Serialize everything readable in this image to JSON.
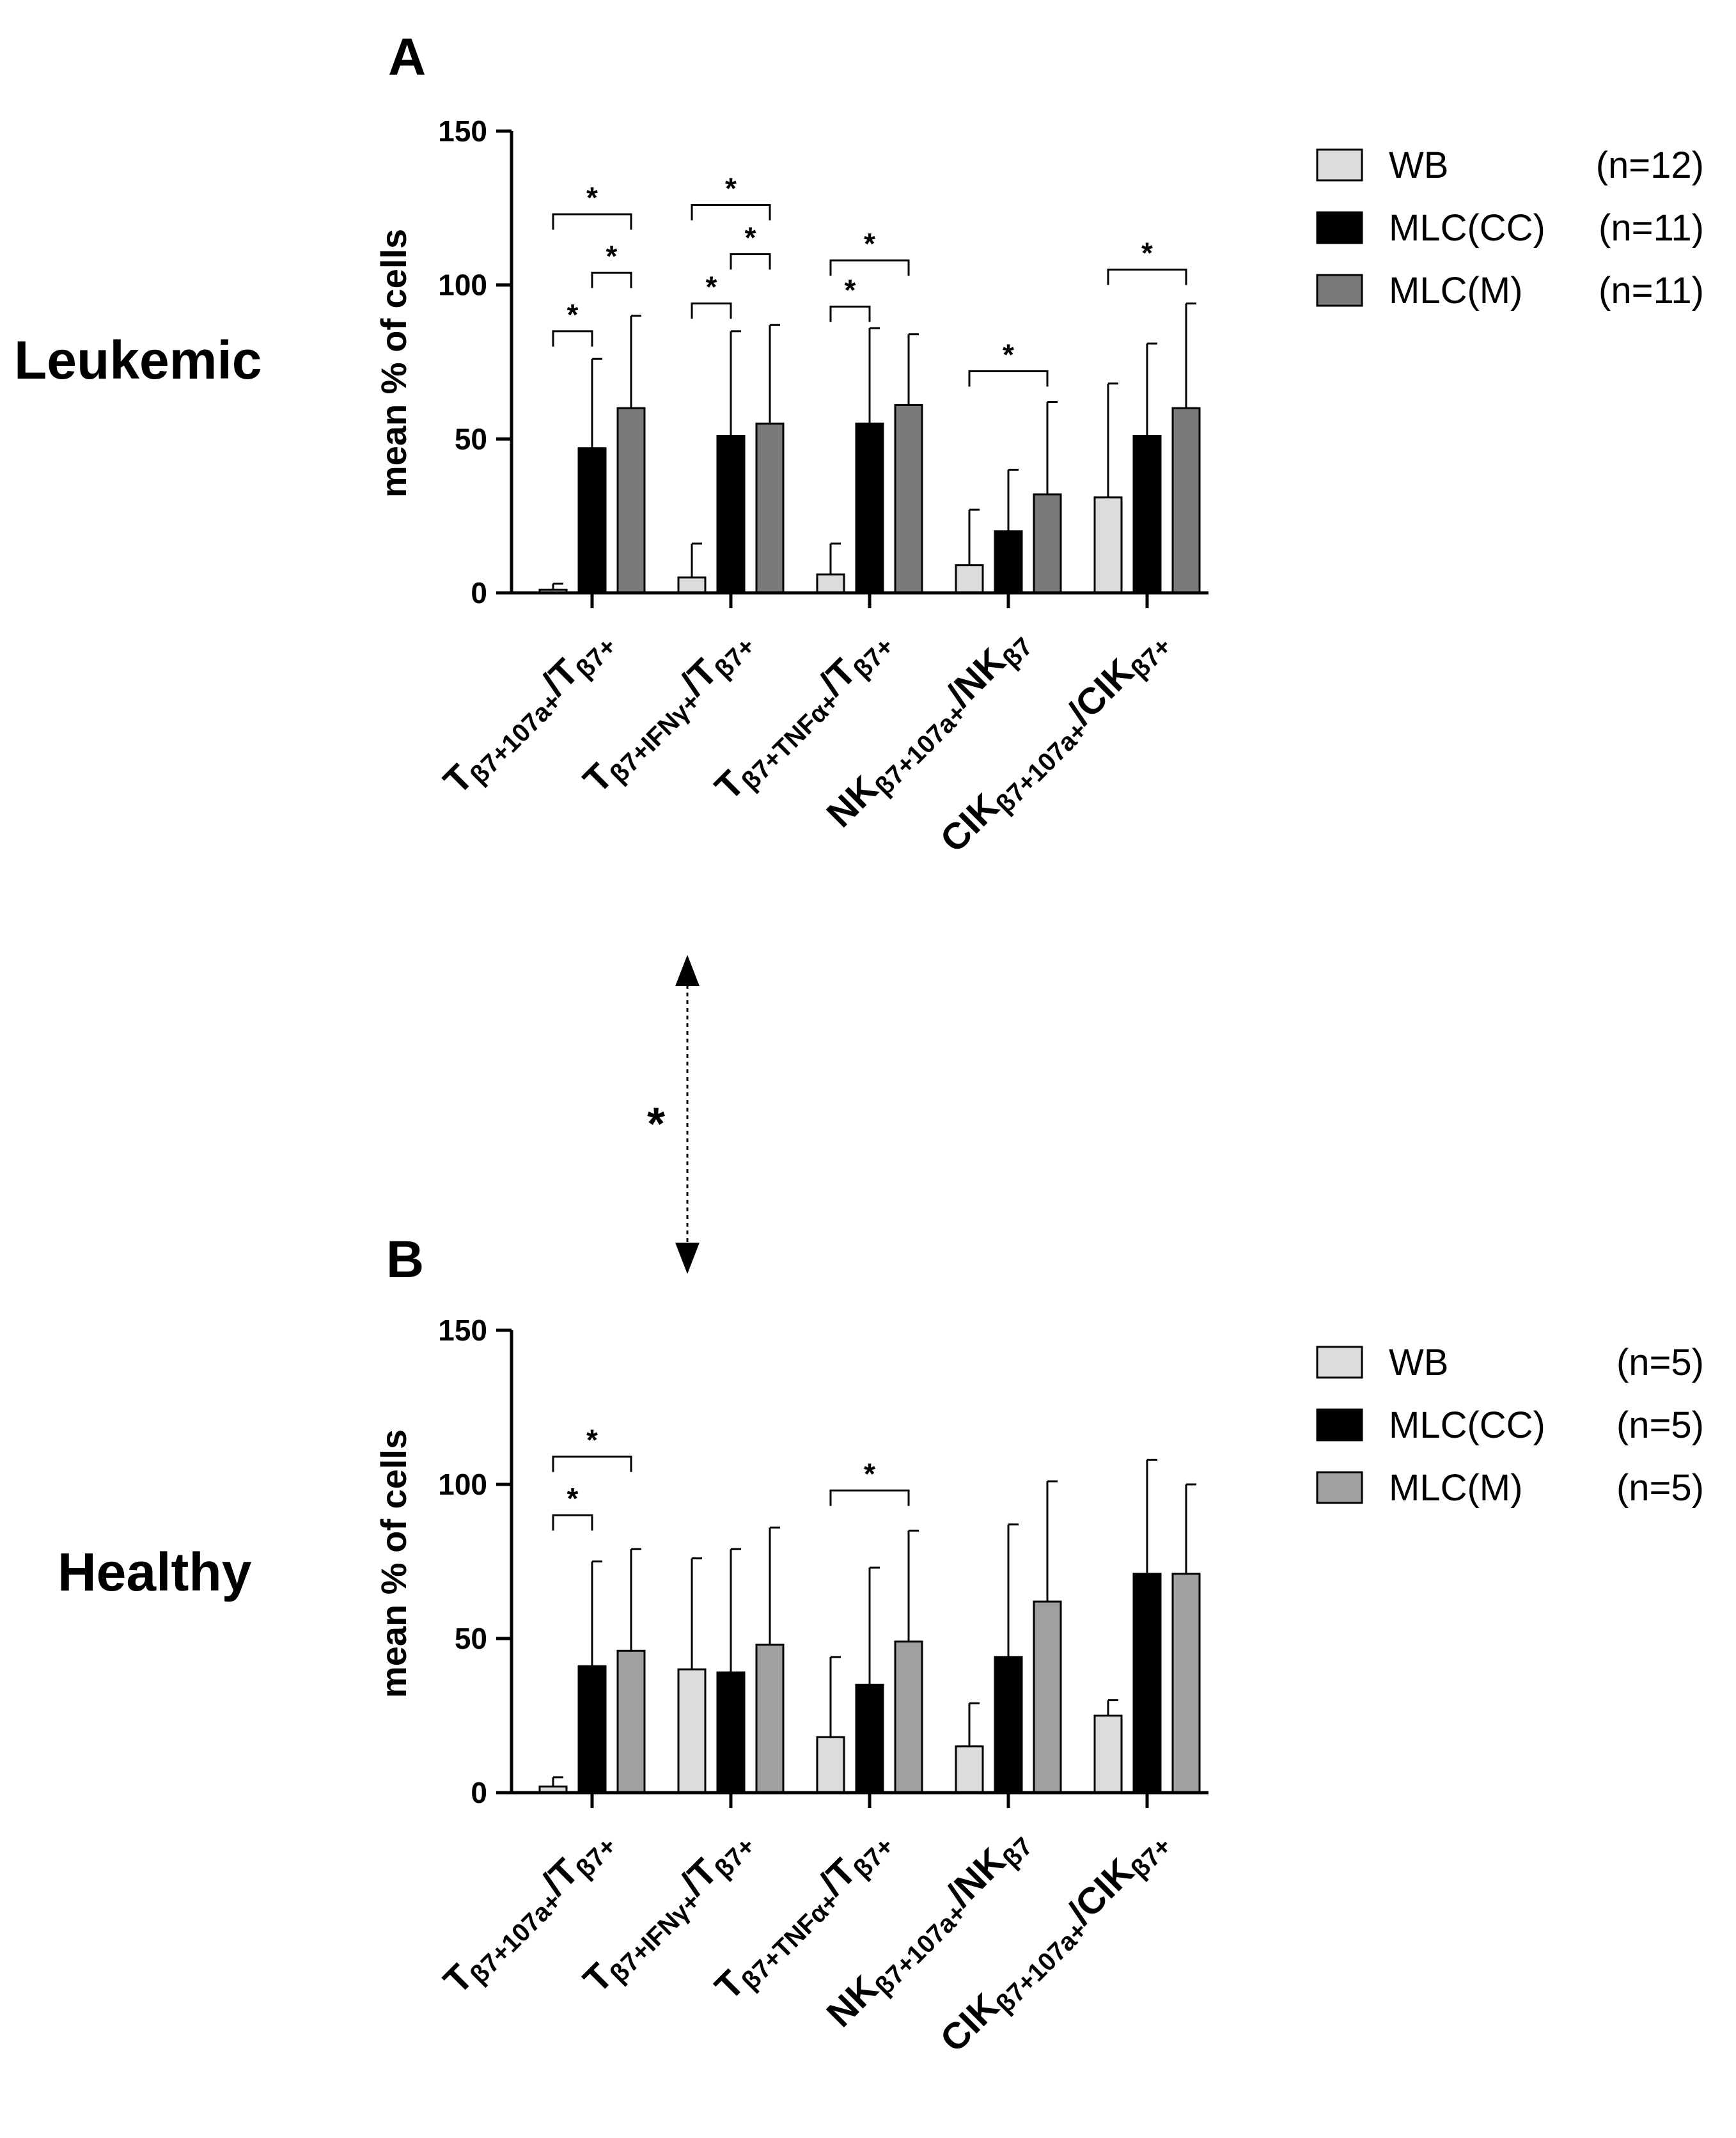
{
  "figure": {
    "middle_arrow_star": "*",
    "group_names": {
      "a": "Leukemic",
      "b": "Healthy"
    },
    "category_labels": [
      {
        "main": "T",
        "sub": "β7+107a+",
        "sep": "/",
        "main2": "T",
        "sub2": "β7+"
      },
      {
        "main": "T",
        "sub": "β7+IFNγ+",
        "sep": "/",
        "main2": "T",
        "sub2": "β7+"
      },
      {
        "main": "T",
        "sub": "β7+TNFα+",
        "sep": "/",
        "main2": "T",
        "sub2": "β7+"
      },
      {
        "main": "NK",
        "sub": "β7+107a+",
        "sep": "/",
        "main2": "NK",
        "sub2": "β7"
      },
      {
        "main": "CIK",
        "sub": "β7+107a+",
        "sep": "/",
        "main2": "CIK",
        "sub2": "β7+"
      }
    ]
  },
  "chart_data": [
    {
      "type": "bar",
      "panel_label": "A",
      "group": "Leukemic",
      "ylabel": "mean % of cells",
      "ylim": [
        0,
        150
      ],
      "yticks": [
        "0",
        "50",
        "100",
        "150"
      ],
      "categories": [
        "Tβ7+107a+/Tβ7+",
        "Tβ7+IFNγ+/Tβ7+",
        "Tβ7+TNFα+/Tβ7+",
        "NKβ7+107a+/NKβ7",
        "CIKβ7+107a+/CIKβ7+"
      ],
      "series": [
        {
          "name": "WB",
          "n": "(n=12)",
          "color": "#dcdcdc",
          "values": [
            1,
            5,
            6,
            9,
            31
          ],
          "errors": [
            2,
            11,
            10,
            18,
            37
          ]
        },
        {
          "name": "MLC(CC)",
          "n": "(n=11)",
          "color": "#000000",
          "values": [
            47,
            51,
            55,
            20,
            51
          ],
          "errors": [
            29,
            34,
            31,
            20,
            30
          ]
        },
        {
          "name": "MLC(M)",
          "n": "(n=11)",
          "color": "#7a7a7a",
          "values": [
            60,
            55,
            61,
            32,
            60
          ],
          "errors": [
            30,
            32,
            23,
            30,
            34
          ]
        }
      ],
      "significance": [
        {
          "category": 0,
          "from": 0,
          "to": 1,
          "y": 85,
          "label": "*"
        },
        {
          "category": 0,
          "from": 1,
          "to": 2,
          "y": 104,
          "label": "*"
        },
        {
          "category": 0,
          "from": 0,
          "to": 2,
          "y": 123,
          "label": "*"
        },
        {
          "category": 1,
          "from": 0,
          "to": 1,
          "y": 94,
          "label": "*"
        },
        {
          "category": 1,
          "from": 1,
          "to": 2,
          "y": 110,
          "label": "*"
        },
        {
          "category": 1,
          "from": 0,
          "to": 2,
          "y": 126,
          "label": "*"
        },
        {
          "category": 2,
          "from": 0,
          "to": 1,
          "y": 93,
          "label": "*"
        },
        {
          "category": 2,
          "from": 0,
          "to": 2,
          "y": 108,
          "label": "*"
        },
        {
          "category": 3,
          "from": 0,
          "to": 2,
          "y": 72,
          "label": "*"
        },
        {
          "category": 4,
          "from": 0,
          "to": 2,
          "y": 105,
          "label": "*"
        }
      ]
    },
    {
      "type": "bar",
      "panel_label": "B",
      "group": "Healthy",
      "ylabel": "mean % of cells",
      "ylim": [
        0,
        150
      ],
      "yticks": [
        "0",
        "50",
        "100",
        "150"
      ],
      "categories": [
        "Tβ7+107a+/Tβ7+",
        "Tβ7+IFNγ+/Tβ7+",
        "Tβ7+TNFα+/Tβ7+",
        "NKβ7+107a+/NKβ7",
        "CIKβ7+107a+/CIKβ7+"
      ],
      "series": [
        {
          "name": "WB",
          "n": "(n=5)",
          "color": "#dcdcdc",
          "values": [
            2,
            40,
            18,
            15,
            25
          ],
          "errors": [
            3,
            36,
            26,
            14,
            5
          ]
        },
        {
          "name": "MLC(CC)",
          "n": "(n=5)",
          "color": "#000000",
          "values": [
            41,
            39,
            35,
            44,
            71
          ],
          "errors": [
            34,
            40,
            38,
            43,
            37
          ]
        },
        {
          "name": "MLC(M)",
          "n": "(n=5)",
          "color": "#a0a0a0",
          "values": [
            46,
            48,
            49,
            62,
            71
          ],
          "errors": [
            33,
            38,
            36,
            39,
            29
          ]
        }
      ],
      "significance": [
        {
          "category": 0,
          "from": 0,
          "to": 1,
          "y": 90,
          "label": "*"
        },
        {
          "category": 0,
          "from": 0,
          "to": 2,
          "y": 109,
          "label": "*"
        },
        {
          "category": 2,
          "from": 0,
          "to": 2,
          "y": 98,
          "label": "*"
        }
      ]
    }
  ]
}
